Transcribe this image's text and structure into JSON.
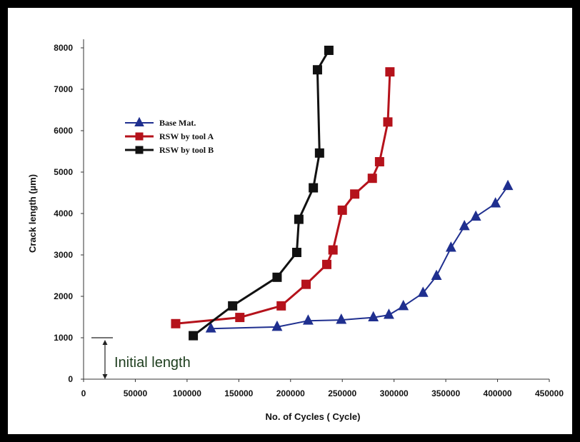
{
  "chart_data": {
    "type": "line",
    "title": "",
    "xlabel": "No. of Cycles  ( Cycle)",
    "ylabel": "Crack length  (µm)",
    "xlim": [
      0,
      450000
    ],
    "ylim": [
      0,
      8000
    ],
    "x_ticks": [
      "0",
      "50000",
      "100000",
      "150000",
      "200000",
      "250000",
      "300000",
      "350000",
      "400000",
      "450000"
    ],
    "y_ticks": [
      "0",
      "1000",
      "2000",
      "3000",
      "4000",
      "5000",
      "6000",
      "7000",
      "8000"
    ],
    "grid": false,
    "legend_position": "upper-left",
    "series": [
      {
        "name": "Base Mat.",
        "color": "#1f2f8f",
        "marker": "triangle",
        "x": [
          123000,
          187000,
          217000,
          249000,
          280000,
          295000,
          309000,
          328000,
          341000,
          355000,
          368000,
          379000,
          398000,
          410000
        ],
        "y": [
          1220,
          1260,
          1410,
          1430,
          1490,
          1550,
          1760,
          2080,
          2490,
          3170,
          3690,
          3920,
          4240,
          4660
        ]
      },
      {
        "name": "RSW by tool A",
        "color": "#b5121b",
        "marker": "square",
        "x": [
          89000,
          151000,
          191000,
          215000,
          235000,
          241000,
          250000,
          262000,
          279000,
          286000,
          294000,
          296000
        ],
        "y": [
          1340,
          1490,
          1770,
          2290,
          2770,
          3120,
          4080,
          4470,
          4850,
          5250,
          6210,
          7420
        ]
      },
      {
        "name": "RSW by tool B",
        "color": "#111111",
        "marker": "square",
        "x": [
          106000,
          144000,
          187000,
          206000,
          208000,
          222000,
          228000,
          226000,
          237000
        ],
        "y": [
          1050,
          1770,
          2460,
          3060,
          3860,
          4620,
          5460,
          7470,
          7940
        ]
      }
    ],
    "annotations": [
      {
        "text": "Initial length",
        "x": 20000,
        "y": 1000
      }
    ]
  }
}
